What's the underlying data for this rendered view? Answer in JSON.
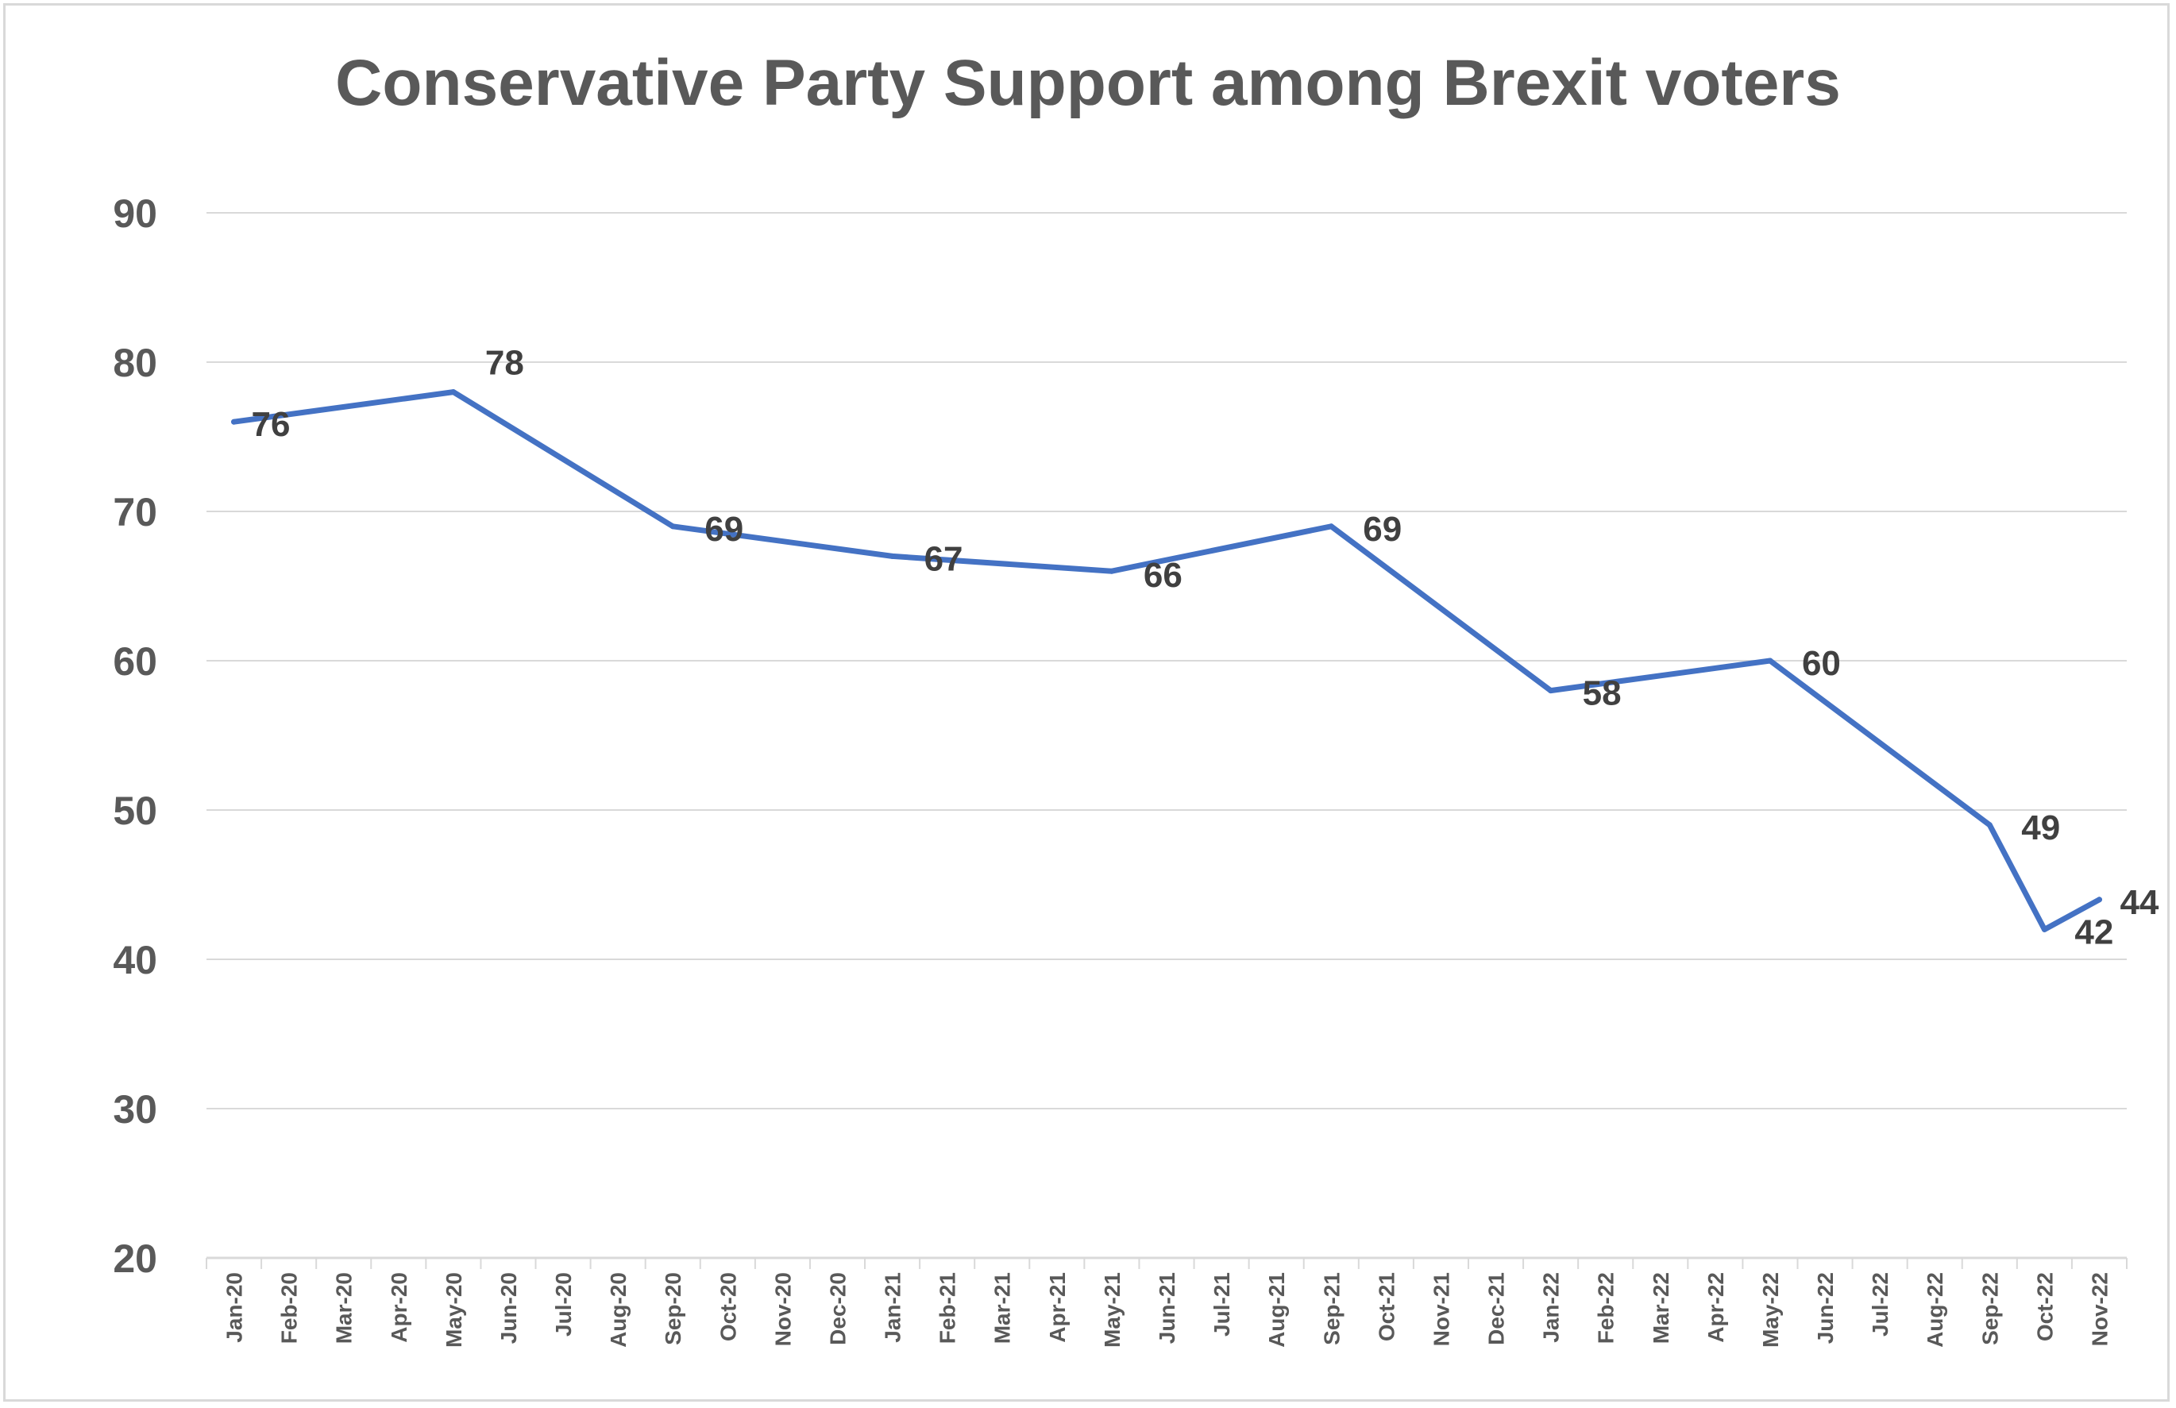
{
  "chart_data": {
    "type": "line",
    "title": "Conservative Party Support among Brexit voters",
    "xlabel": "",
    "ylabel": "",
    "ylim": [
      20,
      90
    ],
    "yticks": [
      20,
      30,
      40,
      50,
      60,
      70,
      80,
      90
    ],
    "grid": true,
    "legend": "none",
    "colors": {
      "line": "#4472c4",
      "grid": "#d9d9d9",
      "text": "#595959",
      "label": "#404040"
    },
    "categories": [
      "Jan-20",
      "Feb-20",
      "Mar-20",
      "Apr-20",
      "May-20",
      "Jun-20",
      "Jul-20",
      "Aug-20",
      "Sep-20",
      "Oct-20",
      "Nov-20",
      "Dec-20",
      "Jan-21",
      "Feb-21",
      "Mar-21",
      "Apr-21",
      "May-21",
      "Jun-21",
      "Jul-21",
      "Aug-21",
      "Sep-21",
      "Oct-21",
      "Nov-21",
      "Dec-21",
      "Jan-22",
      "Feb-22",
      "Mar-22",
      "Apr-22",
      "May-22",
      "Jun-22",
      "Jul-22",
      "Aug-22",
      "Sep-22",
      "Oct-22",
      "Nov-22"
    ],
    "series": [
      {
        "points": [
          {
            "x": "Jan-20",
            "y": 76
          },
          {
            "x": "May-20",
            "y": 78
          },
          {
            "x": "Sep-20",
            "y": 69
          },
          {
            "x": "Jan-21",
            "y": 67
          },
          {
            "x": "May-21",
            "y": 66
          },
          {
            "x": "Sep-21",
            "y": 69
          },
          {
            "x": "Jan-22",
            "y": 58
          },
          {
            "x": "May-22",
            "y": 60
          },
          {
            "x": "Sep-22",
            "y": 49
          },
          {
            "x": "Oct-22",
            "y": 42
          },
          {
            "x": "Nov-22",
            "y": 44
          }
        ]
      }
    ]
  }
}
